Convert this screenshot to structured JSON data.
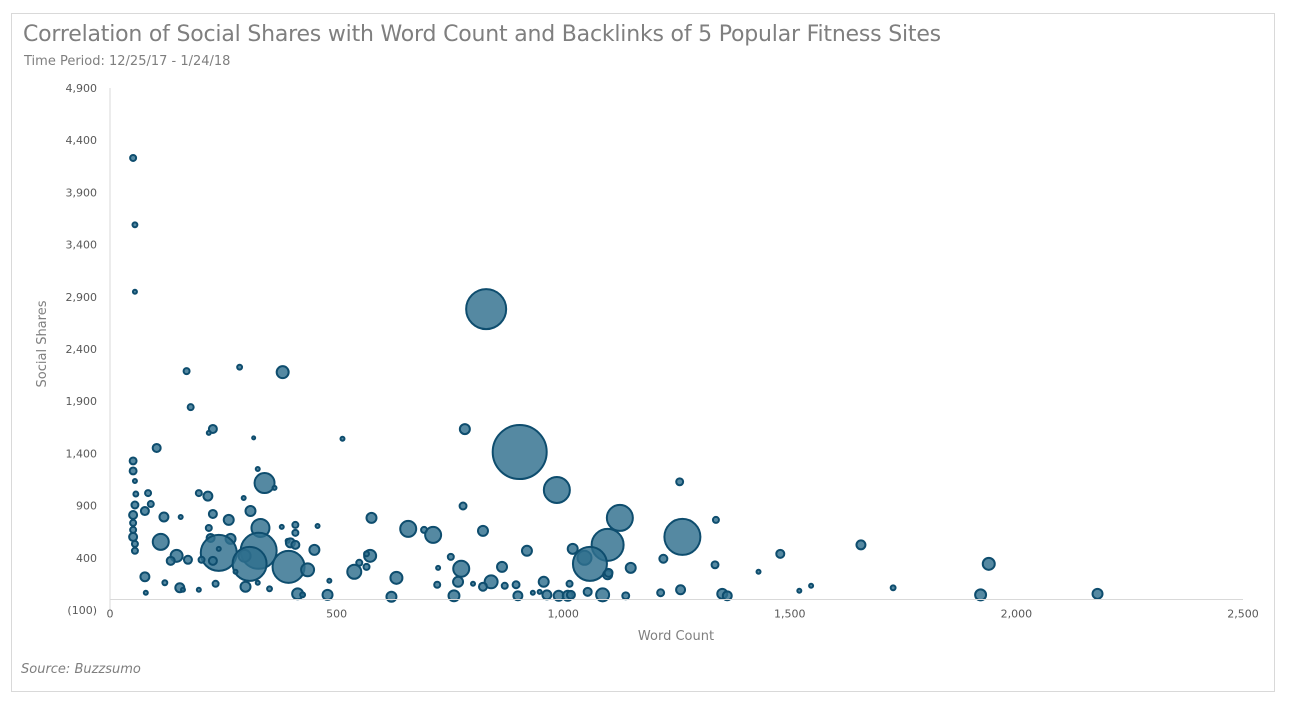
{
  "chart_data": {
    "type": "bubble",
    "title": "Correlation of Social Shares with Word Count and Backlinks of 5 Popular Fitness Sites",
    "subtitle": "Time Period: 12/25/17 - 1/24/18",
    "xlabel": "Word Count",
    "ylabel": "Social Shares",
    "xlim": [
      0,
      2500
    ],
    "ylim": [
      -100,
      4900
    ],
    "x_ticks": [
      0,
      500,
      1000,
      1500,
      2000,
      2500
    ],
    "x_tick_labels": [
      "0",
      "500",
      "1,000",
      "1,500",
      "2,000",
      "2,500"
    ],
    "y_ticks": [
      -100,
      400,
      900,
      1400,
      1900,
      2400,
      2900,
      3400,
      3900,
      4400,
      4900
    ],
    "y_tick_labels": [
      "(100)",
      "400",
      "900",
      "1,400",
      "1,900",
      "2,400",
      "2,900",
      "3,400",
      "3,900",
      "4,400",
      "4,900"
    ],
    "grid": false,
    "legend": "none",
    "colors": {
      "fill": "#2f6f8e",
      "stroke": "#0e4d6e",
      "axis": "#d9d9d9"
    },
    "size_meaning": "relative bubble size (backlinks)",
    "points": [
      [
        51,
        4230,
        9
      ],
      [
        55,
        3590,
        6
      ],
      [
        55,
        2948,
        4
      ],
      [
        830,
        2782,
        400
      ],
      [
        169,
        2188,
        9
      ],
      [
        286,
        2226,
        6
      ],
      [
        381,
        2178,
        36
      ],
      [
        178,
        1843,
        9
      ],
      [
        783,
        1633,
        25
      ],
      [
        103,
        1452,
        16
      ],
      [
        227,
        1634,
        16
      ],
      [
        218,
        1597,
        4
      ],
      [
        317,
        1549,
        2
      ],
      [
        513,
        1540,
        4
      ],
      [
        904,
        1413,
        729
      ],
      [
        51,
        1328,
        12
      ],
      [
        51,
        1232,
        12
      ],
      [
        55,
        1136,
        4
      ],
      [
        1257,
        1128,
        12
      ],
      [
        341,
        1116,
        100
      ],
      [
        326,
        1251,
        4
      ],
      [
        363,
        1070,
        4
      ],
      [
        986,
        1050,
        169
      ],
      [
        196,
        1020,
        9
      ],
      [
        216,
        991,
        20
      ],
      [
        84,
        1020,
        9
      ],
      [
        57,
        1011,
        6
      ],
      [
        295,
        973,
        4
      ],
      [
        55,
        906,
        12
      ],
      [
        90,
        915,
        9
      ],
      [
        779,
        896,
        12
      ],
      [
        310,
        848,
        25
      ],
      [
        227,
        820,
        16
      ],
      [
        156,
        791,
        4
      ],
      [
        51,
        810,
        16
      ],
      [
        77,
        848,
        16
      ],
      [
        119,
        791,
        20
      ],
      [
        262,
        763,
        25
      ],
      [
        577,
        782,
        25
      ],
      [
        1125,
        782,
        169
      ],
      [
        1337,
        763,
        9
      ],
      [
        51,
        734,
        9
      ],
      [
        458,
        705,
        4
      ],
      [
        51,
        667,
        9
      ],
      [
        218,
        686,
        9
      ],
      [
        332,
        686,
        81
      ],
      [
        379,
        696,
        4
      ],
      [
        409,
        715,
        9
      ],
      [
        658,
        677,
        64
      ],
      [
        823,
        658,
        25
      ],
      [
        693,
        667,
        9
      ],
      [
        713,
        619,
        64
      ],
      [
        51,
        600,
        16
      ],
      [
        1263,
        600,
        324
      ],
      [
        222,
        590,
        16
      ],
      [
        266,
        581,
        25
      ],
      [
        112,
        553,
        64
      ],
      [
        409,
        639,
        9
      ],
      [
        392,
        562,
        4
      ],
      [
        398,
        543,
        20
      ],
      [
        409,
        524,
        16
      ],
      [
        55,
        533,
        9
      ],
      [
        1657,
        524,
        20
      ],
      [
        1098,
        524,
        256
      ],
      [
        451,
        476,
        25
      ],
      [
        920,
        467,
        25
      ],
      [
        1021,
        486,
        25
      ],
      [
        240,
        447,
        324
      ],
      [
        328,
        467,
        324
      ],
      [
        55,
        467,
        9
      ],
      [
        240,
        486,
        4
      ],
      [
        147,
        419,
        36
      ],
      [
        134,
        371,
        16
      ],
      [
        172,
        381,
        16
      ],
      [
        202,
        381,
        9
      ],
      [
        227,
        371,
        16
      ],
      [
        297,
        419,
        36
      ],
      [
        308,
        342,
        289
      ],
      [
        394,
        313,
        256
      ],
      [
        574,
        419,
        36
      ],
      [
        566,
        438,
        6
      ],
      [
        550,
        352,
        9
      ],
      [
        1047,
        400,
        49
      ],
      [
        1059,
        342,
        289
      ],
      [
        1221,
        391,
        16
      ],
      [
        1479,
        438,
        16
      ],
      [
        1939,
        342,
        36
      ],
      [
        1335,
        333,
        12
      ],
      [
        775,
        295,
        64
      ],
      [
        752,
        409,
        9
      ],
      [
        724,
        304,
        4
      ],
      [
        1149,
        304,
        25
      ],
      [
        1098,
        237,
        20
      ],
      [
        1100,
        256,
        16
      ],
      [
        436,
        285,
        42
      ],
      [
        539,
        266,
        49
      ],
      [
        566,
        313,
        9
      ],
      [
        865,
        313,
        25
      ],
      [
        77,
        218,
        20
      ],
      [
        632,
        208,
        36
      ],
      [
        1431,
        266,
        4
      ],
      [
        277,
        266,
        4
      ],
      [
        841,
        170,
        42
      ],
      [
        768,
        170,
        25
      ],
      [
        957,
        170,
        25
      ],
      [
        121,
        161,
        6
      ],
      [
        233,
        151,
        9
      ],
      [
        154,
        113,
        20
      ],
      [
        299,
        123,
        25
      ],
      [
        326,
        161,
        4
      ],
      [
        484,
        180,
        4
      ],
      [
        161,
        94,
        4
      ],
      [
        196,
        94,
        4
      ],
      [
        352,
        103,
        6
      ],
      [
        722,
        142,
        9
      ],
      [
        801,
        151,
        4
      ],
      [
        871,
        132,
        9
      ],
      [
        823,
        123,
        16
      ],
      [
        896,
        142,
        12
      ],
      [
        1014,
        151,
        9
      ],
      [
        1259,
        94,
        20
      ],
      [
        1547,
        132,
        4
      ],
      [
        1728,
        113,
        6
      ],
      [
        1521,
        84,
        4
      ],
      [
        79,
        65,
        4
      ],
      [
        414,
        55,
        30
      ],
      [
        425,
        45,
        6
      ],
      [
        480,
        45,
        25
      ],
      [
        621,
        27,
        25
      ],
      [
        759,
        36,
        30
      ],
      [
        900,
        36,
        20
      ],
      [
        933,
        65,
        4
      ],
      [
        948,
        74,
        4
      ],
      [
        964,
        45,
        20
      ],
      [
        990,
        36,
        25
      ],
      [
        1010,
        36,
        25
      ],
      [
        1017,
        45,
        16
      ],
      [
        1054,
        74,
        16
      ],
      [
        1087,
        45,
        42
      ],
      [
        1138,
        36,
        12
      ],
      [
        1215,
        65,
        12
      ],
      [
        1351,
        55,
        25
      ],
      [
        1362,
        36,
        20
      ],
      [
        1921,
        45,
        30
      ],
      [
        2179,
        55,
        25
      ]
    ]
  },
  "source": "Source: Buzzsumo"
}
